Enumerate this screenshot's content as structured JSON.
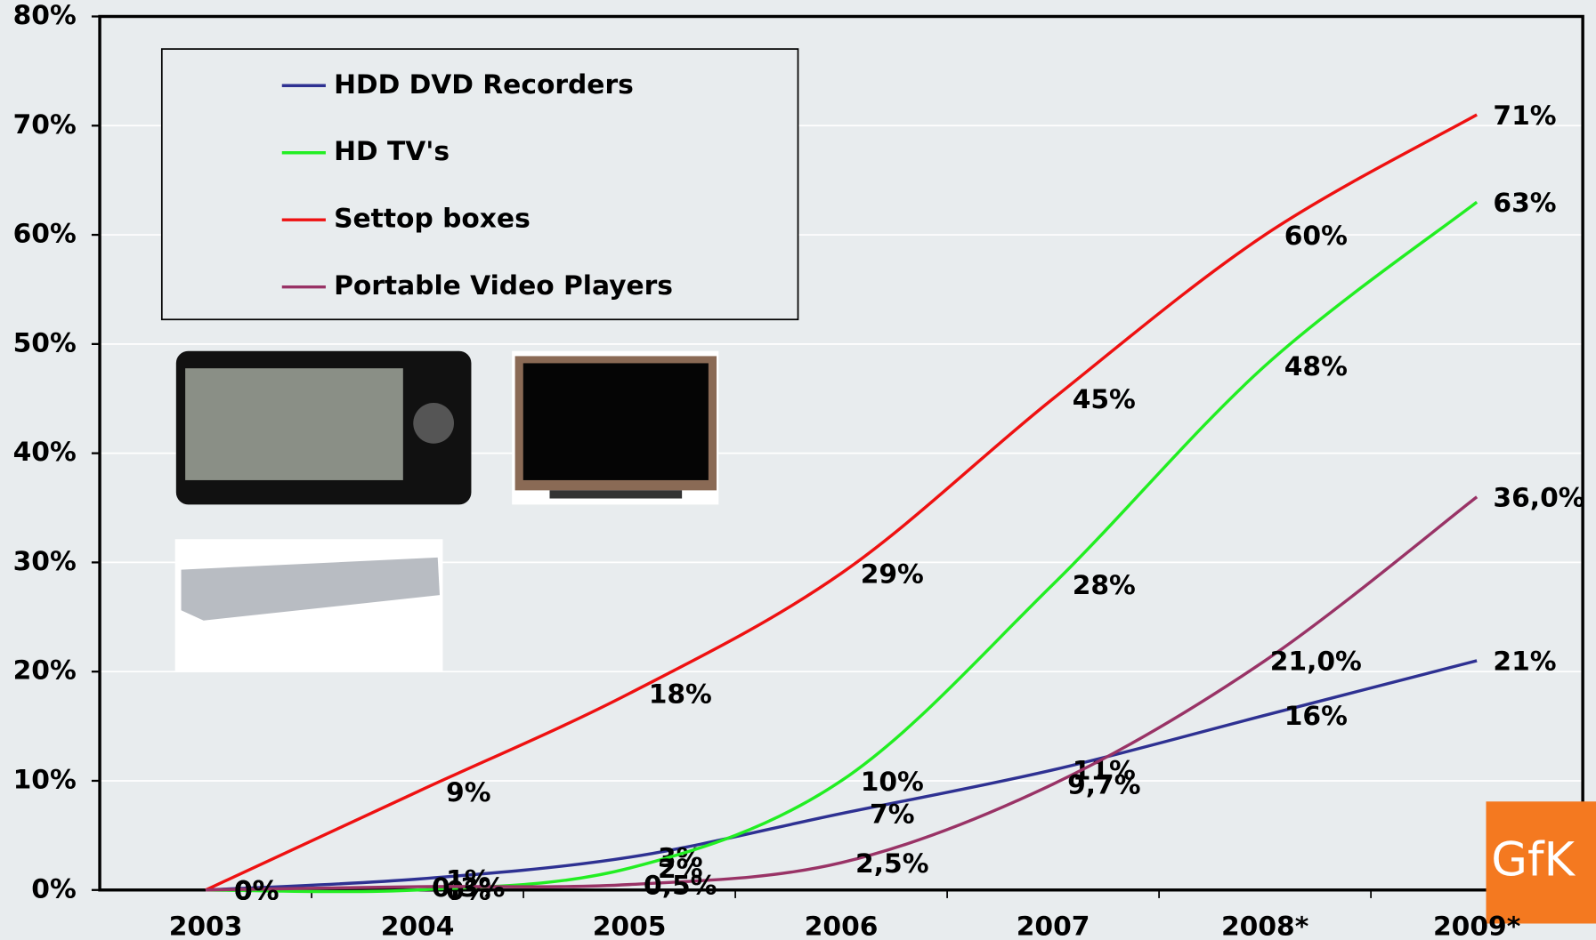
{
  "chart_data": {
    "type": "line",
    "categories": [
      "2003",
      "2004",
      "2005",
      "2006",
      "2007",
      "2008*",
      "2009*"
    ],
    "ylim": [
      0,
      80
    ],
    "yticks": [
      {
        "value": 0,
        "label": "0%"
      },
      {
        "value": 10,
        "label": "10%"
      },
      {
        "value": 20,
        "label": "20%"
      },
      {
        "value": 30,
        "label": "30%"
      },
      {
        "value": 40,
        "label": "40%"
      },
      {
        "value": 50,
        "label": "50%"
      },
      {
        "value": 60,
        "label": "60%"
      },
      {
        "value": 70,
        "label": "70%"
      },
      {
        "value": 80,
        "label": "80%"
      }
    ],
    "grid": true,
    "legend": "upper left",
    "series": [
      {
        "name": "HDD DVD Recorders",
        "color": "#2e3192",
        "values": [
          0,
          1,
          3,
          7,
          11,
          16,
          21
        ],
        "value_labels": [
          "0%",
          "1%",
          "3%",
          "7%",
          "11%",
          "16%",
          "21%"
        ]
      },
      {
        "name": "HD TV's",
        "color": "#22ee22",
        "values": [
          0,
          0,
          2,
          10,
          28,
          48,
          63
        ],
        "value_labels": [
          "0%",
          "0%",
          "2%",
          "10%",
          "28%",
          "48%",
          "63%"
        ]
      },
      {
        "name": "Settop boxes",
        "color": "#ee1111",
        "values": [
          0,
          9,
          18,
          29,
          45,
          60,
          71
        ],
        "value_labels": [
          "0%",
          "9%",
          "18%",
          "29%",
          "45%",
          "60%",
          "71%"
        ]
      },
      {
        "name": "Portable Video Players",
        "color": "#993366",
        "values": [
          0,
          0.3,
          0.5,
          2.5,
          9.7,
          21.0,
          36.0
        ],
        "value_labels": [
          "0%",
          "0,3%",
          "0,5%",
          "2,5%",
          "9,7%",
          "21,0%",
          "36,0%"
        ]
      }
    ],
    "logo": "GfK"
  }
}
